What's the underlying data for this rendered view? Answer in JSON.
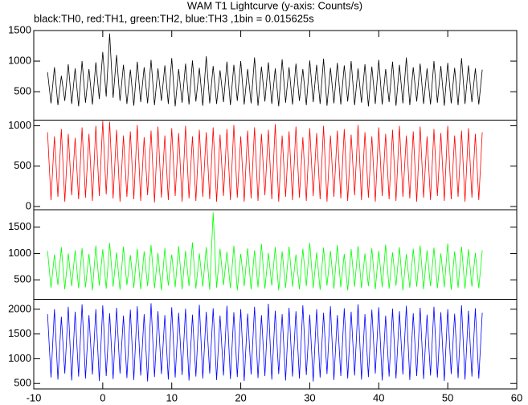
{
  "chart_data": {
    "type": "line",
    "title": "WAM T1 Lightcurve (y-axis: Counts/s)",
    "subtitle": "black:TH0, red:TH1, green:TH2, blue:TH3 ,1bin = 0.015625s",
    "xlim": [
      -10,
      60
    ],
    "xticks": [
      -10,
      0,
      10,
      20,
      30,
      40,
      50,
      60
    ],
    "x": [
      -8,
      -7.5,
      -7,
      -6.5,
      -6,
      -5.5,
      -5,
      -4.5,
      -4,
      -3.5,
      -3,
      -2.5,
      -2,
      -1.5,
      -1,
      -0.5,
      0,
      0.5,
      1,
      1.5,
      2,
      2.5,
      3,
      3.5,
      4,
      4.5,
      5,
      5.5,
      6,
      6.5,
      7,
      7.5,
      8,
      8.5,
      9,
      9.5,
      10,
      10.5,
      11,
      11.5,
      12,
      12.5,
      13,
      13.5,
      14,
      14.5,
      15,
      15.5,
      16,
      16.5,
      17,
      17.5,
      18,
      18.5,
      19,
      19.5,
      20,
      20.5,
      21,
      21.5,
      22,
      22.5,
      23,
      23.5,
      24,
      24.5,
      25,
      25.5,
      26,
      26.5,
      27,
      27.5,
      28,
      28.5,
      29,
      29.5,
      30,
      30.5,
      31,
      31.5,
      32,
      32.5,
      33,
      33.5,
      34,
      34.5,
      35,
      35.5,
      36,
      36.5,
      37,
      37.5,
      38,
      38.5,
      39,
      39.5,
      40,
      40.5,
      41,
      41.5,
      42,
      42.5,
      43,
      43.5,
      44,
      44.5,
      45,
      45.5,
      46,
      46.5,
      47,
      47.5,
      48,
      48.5,
      49,
      49.5,
      50,
      50.5,
      51,
      51.5,
      52,
      52.5,
      53,
      53.5,
      54,
      54.5,
      55
    ],
    "series": [
      {
        "color": "#000000",
        "ylim": [
          35,
          1500
        ],
        "yticks": [
          500,
          1000,
          1500
        ],
        "values": [
          820,
          310,
          900,
          280,
          760,
          350,
          950,
          300,
          880,
          260,
          1000,
          320,
          870,
          290,
          980,
          380,
          1150,
          420,
          1450,
          400,
          1100,
          350,
          940,
          300,
          860,
          270,
          990,
          330,
          900,
          310,
          1020,
          280,
          880,
          350,
          930,
          300,
          1050,
          260,
          870,
          320,
          960,
          290,
          1010,
          340,
          890,
          270,
          1080,
          310,
          920,
          300,
          850,
          330,
          990,
          280,
          940,
          350,
          1000,
          290,
          870,
          310,
          1060,
          270,
          910,
          340,
          980,
          300,
          880,
          260,
          1030,
          320,
          900,
          290,
          960,
          350,
          870,
          280,
          1010,
          330,
          940,
          300,
          1040,
          270,
          890,
          310,
          970,
          290,
          930,
          340,
          1000,
          280,
          880,
          320,
          950,
          260,
          910,
          300,
          1020,
          290,
          870,
          330,
          990,
          270,
          940,
          310,
          1060,
          280,
          900,
          340,
          960,
          300,
          880,
          290,
          1000,
          320,
          920,
          270,
          970,
          310,
          890,
          280,
          1050,
          300,
          930,
          330,
          880,
          290,
          860
        ]
      },
      {
        "color": "#ff0000",
        "ylim": [
          -40,
          1070
        ],
        "yticks": [
          0,
          500,
          1000
        ],
        "values": [
          920,
          80,
          870,
          120,
          960,
          60,
          900,
          140,
          850,
          90,
          980,
          110,
          900,
          70,
          1000,
          130,
          1060,
          150,
          1050,
          100,
          950,
          60,
          880,
          120,
          930,
          90,
          1010,
          70,
          860,
          140,
          940,
          50,
          990,
          110,
          880,
          80,
          970,
          130,
          910,
          60,
          1000,
          100,
          870,
          70,
          950,
          120,
          920,
          90,
          980,
          60,
          890,
          130,
          960,
          80,
          1010,
          110,
          870,
          60,
          940,
          100,
          980,
          70,
          900,
          140,
          950,
          90,
          1020,
          60,
          880,
          120,
          930,
          80,
          990,
          110,
          860,
          70,
          970,
          130,
          910,
          90,
          1000,
          60,
          880,
          120,
          940,
          100,
          960,
          70,
          890,
          140,
          1010,
          80,
          920,
          110,
          870,
          60,
          980,
          130,
          900,
          90,
          950,
          70,
          1000,
          120,
          880,
          100,
          930,
          60,
          990,
          110,
          870,
          80,
          960,
          130,
          910,
          70,
          1000,
          90,
          880,
          120,
          940,
          60,
          970,
          110,
          900,
          80,
          920
        ]
      },
      {
        "color": "#00ff00",
        "ylim": [
          130,
          1830
        ],
        "yticks": [
          500,
          1000,
          1500
        ],
        "values": [
          1050,
          350,
          980,
          400,
          1120,
          320,
          1000,
          380,
          1060,
          340,
          1100,
          360,
          990,
          300,
          1150,
          390,
          1080,
          330,
          1200,
          370,
          1020,
          310,
          1130,
          400,
          970,
          350,
          1090,
          320,
          1040,
          380,
          1160,
          340,
          1010,
          300,
          1100,
          390,
          980,
          360,
          1140,
          320,
          1050,
          380,
          1210,
          330,
          1000,
          370,
          1120,
          310,
          1780,
          350,
          1090,
          400,
          1030,
          340,
          1150,
          300,
          990,
          380,
          1100,
          320,
          1060,
          360,
          1180,
          330,
          1010,
          390,
          1120,
          300,
          1040,
          350,
          1130,
          370,
          980,
          320,
          1090,
          380,
          1200,
          340,
          1020,
          310,
          1110,
          390,
          1050,
          330,
          1160,
          360,
          990,
          300,
          1080,
          370,
          1140,
          340,
          1000,
          380,
          1100,
          320,
          1050,
          360,
          1170,
          330,
          1020,
          390,
          1120,
          300,
          990,
          350,
          1090,
          370,
          1150,
          320,
          1060,
          380,
          1110,
          340,
          1000,
          360,
          1190,
          310,
          1040,
          350,
          1130,
          330,
          1080,
          370,
          1010,
          340,
          1060
        ]
      },
      {
        "color": "#0000ff",
        "ylim": [
          390,
          2200
        ],
        "yticks": [
          500,
          1000,
          1500,
          2000
        ],
        "values": [
          1900,
          620,
          2000,
          580,
          1850,
          700,
          2050,
          560,
          1950,
          640,
          2100,
          600,
          1880,
          680,
          2000,
          550,
          2080,
          650,
          1920,
          590,
          2030,
          700,
          1870,
          610,
          1990,
          570,
          2060,
          660,
          1900,
          540,
          2120,
          630,
          1960,
          690,
          1880,
          580,
          2040,
          620,
          1930,
          670,
          2010,
          560,
          1890,
          640,
          2090,
          600,
          1950,
          700,
          2020,
          570,
          1870,
          660,
          2070,
          590,
          1940,
          630,
          2000,
          550,
          1910,
          680,
          2050,
          610,
          1880,
          650,
          2110,
          580,
          1970,
          690,
          1900,
          560,
          2030,
          640,
          1960,
          600,
          2080,
          670,
          1890,
          540,
          2000,
          620,
          1930,
          690,
          2060,
          570,
          1880,
          650,
          2020,
          600,
          1950,
          660,
          2100,
          580,
          1900,
          630,
          1990,
          700,
          2040,
          560,
          1870,
          640,
          2010,
          600,
          1960,
          680,
          2070,
          570,
          1920,
          650,
          2030,
          590,
          1890,
          660,
          2050,
          620,
          1940,
          550,
          2000,
          690,
          1910,
          610,
          2080,
          580,
          1970,
          640,
          2020,
          600,
          1930
        ]
      }
    ]
  }
}
